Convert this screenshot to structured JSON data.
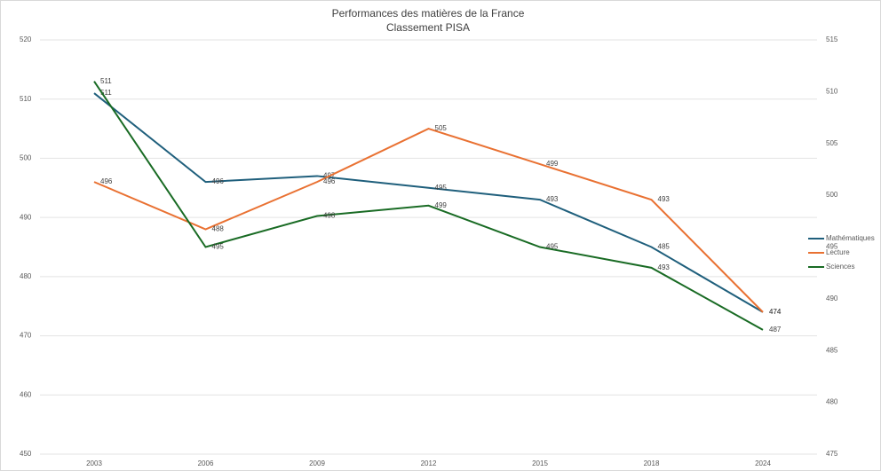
{
  "chart_data": {
    "type": "line",
    "title": "Performances des matières de la France",
    "subtitle": "Classement PISA",
    "categories": [
      "2003",
      "2006",
      "2009",
      "2012",
      "2015",
      "2018",
      "2024"
    ],
    "series": [
      {
        "name": "Mathématiques",
        "color": "#1f5f7c",
        "values": [
          511,
          496,
          497,
          495,
          493,
          485,
          474
        ]
      },
      {
        "name": "Lecture",
        "color": "#e97132",
        "values": [
          496,
          488,
          496,
          505,
          499,
          493,
          474
        ]
      },
      {
        "name": "Sciences",
        "color": "#196b24",
        "axis": "y2",
        "values": [
          511,
          495,
          498,
          499,
          495,
          493,
          487
        ]
      }
    ],
    "ylim": [
      450,
      520
    ],
    "yticks": [
      450,
      460,
      470,
      480,
      490,
      500,
      510,
      520
    ],
    "y2lim": [
      475,
      515
    ],
    "y2ticks": [
      475,
      480,
      485,
      490,
      495,
      500,
      505,
      510,
      515
    ],
    "grid": true,
    "legend": "right"
  }
}
